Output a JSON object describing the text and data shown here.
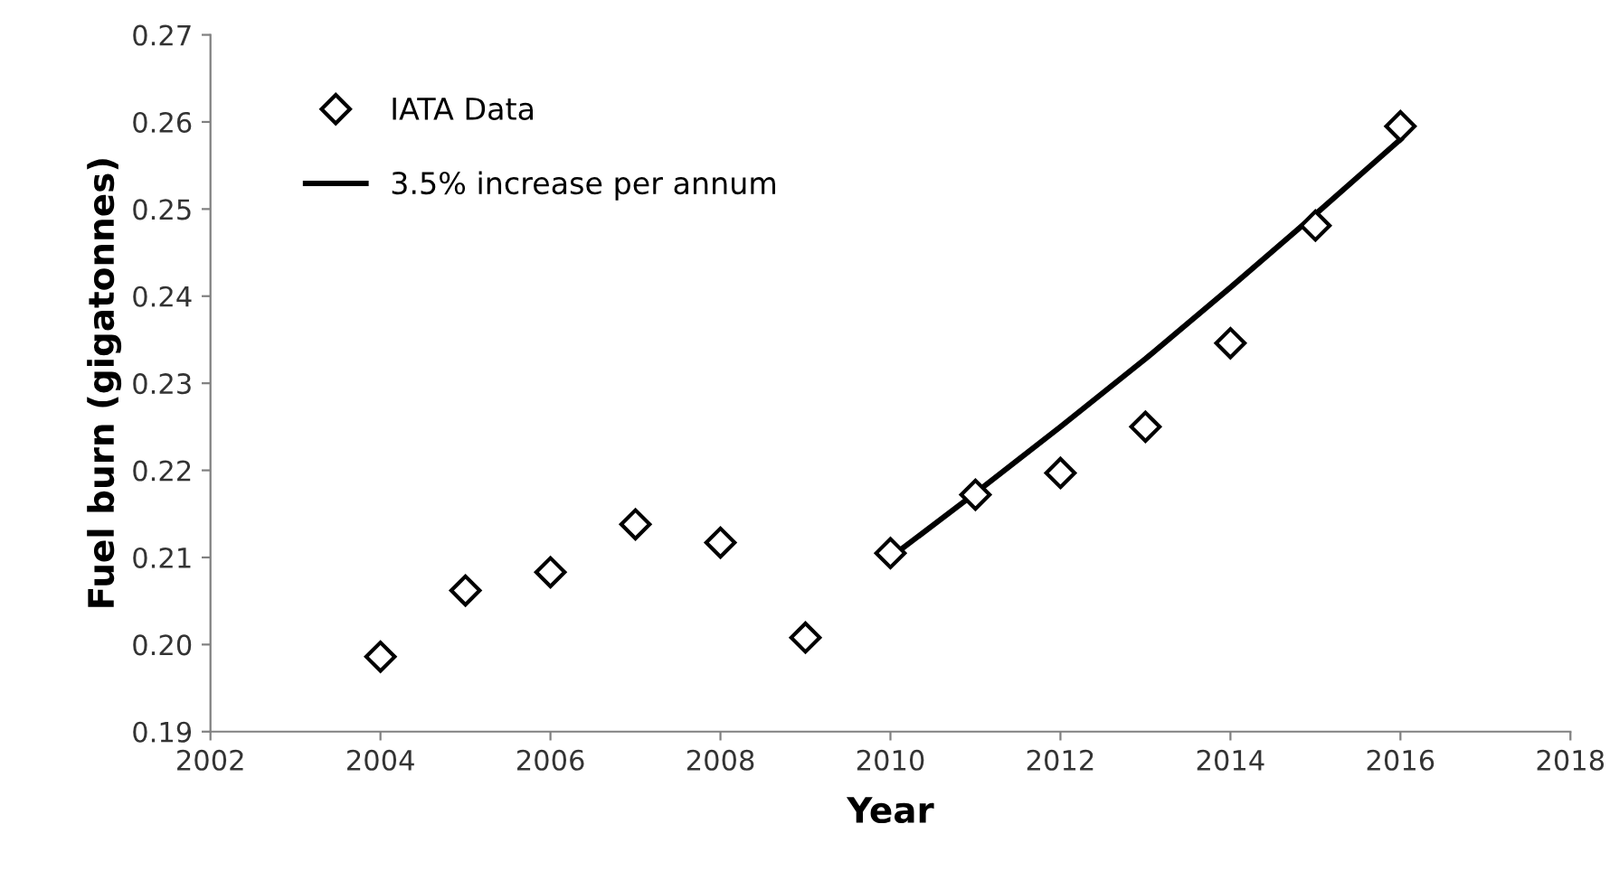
{
  "chart_data": {
    "type": "scatter",
    "xlabel": "Year",
    "ylabel": "Fuel burn (gigatonnes)",
    "xlim": [
      2002,
      2018
    ],
    "xticks": [
      2002,
      2004,
      2006,
      2008,
      2010,
      2012,
      2014,
      2016,
      2018
    ],
    "ylim": [
      0.19,
      0.27
    ],
    "yticks": [
      {
        "value": 0.19,
        "label": "0.19"
      },
      {
        "value": 0.2,
        "label": "0.20"
      },
      {
        "value": 0.21,
        "label": "0.21"
      },
      {
        "value": 0.22,
        "label": "0.22"
      },
      {
        "value": 0.23,
        "label": "0.23"
      },
      {
        "value": 0.24,
        "label": "0.24"
      },
      {
        "value": 0.25,
        "label": "0.25"
      },
      {
        "value": 0.26,
        "label": "0.26"
      },
      {
        "value": 0.27,
        "label": "0.27"
      }
    ],
    "grid": false,
    "legend": "top left",
    "series": [
      {
        "name": "IATA Data",
        "marker": "diamond",
        "color": "#000000",
        "x": [
          2004,
          2005,
          2006,
          2007,
          2008,
          2009,
          2010,
          2011,
          2012,
          2013,
          2014,
          2015,
          2016
        ],
        "values": [
          0.1986,
          0.2062,
          0.2083,
          0.2138,
          0.2117,
          0.2008,
          0.2105,
          0.2172,
          0.2197,
          0.225,
          0.2346,
          0.2481,
          0.2595
        ]
      },
      {
        "name": "3.5% increase per annum",
        "type": "line",
        "line_style": "solid",
        "color": "#000000",
        "x": [
          2010,
          2011,
          2012,
          2013,
          2014,
          2015,
          2016
        ],
        "values": [
          0.21,
          0.2174,
          0.225,
          0.2328,
          0.241,
          0.2494,
          0.258
        ]
      }
    ]
  }
}
